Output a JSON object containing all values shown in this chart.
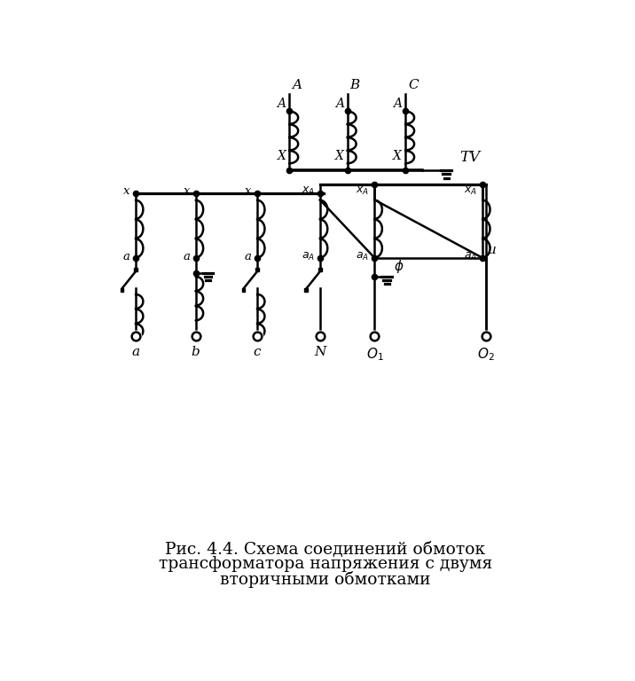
{
  "bg_color": "#ffffff",
  "lc": "#000000",
  "lw": 1.8,
  "caption_line1": "Рис. 4.4. Схема соединений обмоток",
  "caption_line2": "трансформатора напряжения с двумя",
  "caption_line3": "вторичными обмотками"
}
